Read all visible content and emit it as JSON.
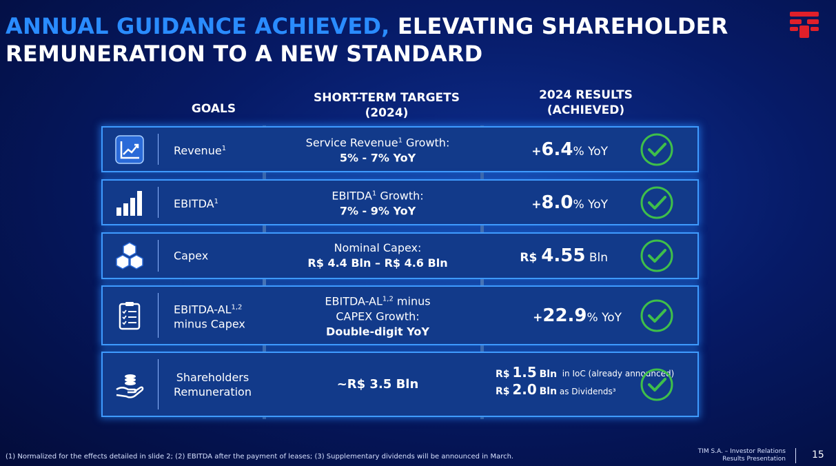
{
  "title": {
    "highlight": "ANNUAL GUIDANCE ACHIEVED,",
    "rest": " ELEVATING SHAREHOLDER",
    "line2": "REMUNERATION TO A NEW STANDARD"
  },
  "headers": {
    "goals": "GOALS",
    "targets_l1": "SHORT-TERM TARGETS",
    "targets_l2": "(2024)",
    "results_l1": "2024 RESULTS",
    "results_l2": "(ACHIEVED)"
  },
  "rows": [
    {
      "goal": "Revenue",
      "goal_sup": "1",
      "target_l1a": "Service Revenue",
      "target_sup": "1",
      "target_l1b": " Growth:",
      "target_l2": "5% - 7%  YoY",
      "result_pre": "+",
      "result_big": "6.4",
      "result_post": "% YoY",
      "icon": "growth-chart-icon"
    },
    {
      "goal": "EBITDA",
      "goal_sup": "1",
      "target_l1a": "EBITDA",
      "target_sup": "1",
      "target_l1b": " Growth:",
      "target_l2": "7% - 9% YoY",
      "result_pre": "+",
      "result_big": "8.0",
      "result_post": "% YoY",
      "icon": "bar-chart-icon"
    },
    {
      "goal": "Capex",
      "target_l1": "Nominal Capex:",
      "target_l2": "R$ 4.4 Bln – R$ 4.6 Bln",
      "result_pre": "R$ ",
      "result_big": "4.55",
      "result_post": " Bln",
      "icon": "cubes-icon"
    },
    {
      "goal": "EBITDA-AL",
      "goal_sup": "1,2",
      "goal_l2": "minus Capex",
      "target_l1a": "EBITDA-AL",
      "target_sup": "1,2",
      "target_l1b": " minus",
      "target_l2": "CAPEX Growth:",
      "target_l3": "Double-digit YoY",
      "result_pre": "+",
      "result_big": "22.9",
      "result_post": "% YoY",
      "icon": "checklist-icon"
    },
    {
      "goal": "Shareholders",
      "goal_l2": "Remuneration",
      "target_l1": "~R$ 3.5 Bln",
      "r1_cur": "R$",
      "r1_big": "1.5",
      "r1_unit": "Bln",
      "r1_note": "in IoC (already announced)",
      "r2_cur": "R$",
      "r2_big": "2.0",
      "r2_unit": "Bln",
      "r2_note": "as Dividends³",
      "icon": "hand-coins-icon"
    }
  ],
  "footnote": "(1)    Normalized for the effects detailed in slide 2; (2)     EBITDA after the payment of leases; (3)     Supplementary dividends will be announced in March.",
  "corporate": {
    "line1": "TIM S.A. – Investor Relations",
    "line2": "Results Presentation"
  },
  "page_number": "15",
  "colors": {
    "accent": "#2a8cff",
    "check": "#3fbf4a",
    "brand": "#e0202a"
  }
}
